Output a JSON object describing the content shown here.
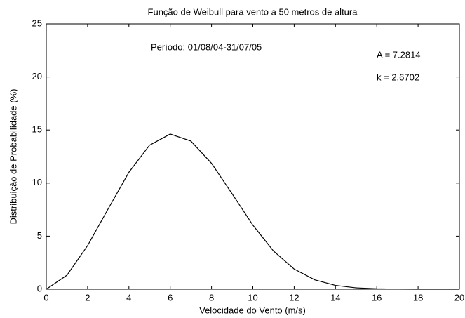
{
  "chart_data": {
    "type": "line",
    "title": "Função de Weibull para vento a 50 metros de altura",
    "xlabel": "Velocidade do Vento (m/s)",
    "ylabel": "Distribuição de Probabilidade (%)",
    "annotations": [
      "Período: 01/08/04-31/07/05",
      "A = 7.2814",
      "k = 2.6702"
    ],
    "x": [
      0,
      1,
      2,
      3,
      4,
      5,
      6,
      7,
      8,
      9,
      10,
      11,
      12,
      13,
      14,
      15,
      16,
      17,
      18,
      19,
      20
    ],
    "series": [
      {
        "name": "Weibull",
        "color": "#000000",
        "values": [
          0,
          1.32,
          4.11,
          7.59,
          11.02,
          13.57,
          14.62,
          13.96,
          11.86,
          8.98,
          6.04,
          3.6,
          1.9,
          0.88,
          0.36,
          0.13,
          0.04,
          0.01,
          0,
          0,
          0
        ]
      }
    ],
    "xlim": [
      0,
      20
    ],
    "xticks": [
      0,
      2,
      4,
      6,
      8,
      10,
      12,
      14,
      16,
      18,
      20
    ],
    "ylim": [
      0,
      25
    ],
    "yticks": [
      0,
      5,
      10,
      15,
      20,
      25
    ],
    "grid": false
  }
}
